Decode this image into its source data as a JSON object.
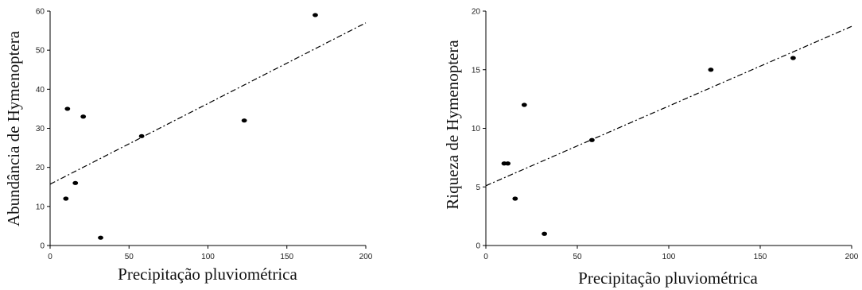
{
  "chart_data": [
    {
      "type": "scatter",
      "xlabel": "Precipitação pluviométrica",
      "ylabel": "Abundância de Hymenoptera",
      "xlim": [
        0,
        200
      ],
      "ylim": [
        0,
        60
      ],
      "xticks": [
        0,
        50,
        100,
        150,
        200
      ],
      "yticks": [
        0,
        10,
        20,
        30,
        40,
        50,
        60
      ],
      "grid": false,
      "points": [
        {
          "x": 10,
          "y": 12
        },
        {
          "x": 11,
          "y": 35
        },
        {
          "x": 16,
          "y": 16
        },
        {
          "x": 21,
          "y": 33
        },
        {
          "x": 32,
          "y": 2
        },
        {
          "x": 58,
          "y": 28
        },
        {
          "x": 123,
          "y": 32
        },
        {
          "x": 168,
          "y": 59
        }
      ],
      "trendline": {
        "style": "dash-dot",
        "x": [
          0,
          200
        ],
        "y": [
          15.7,
          57
        ]
      }
    },
    {
      "type": "scatter",
      "xlabel": "Precipitação pluviométrica",
      "ylabel": "Riqueza de Hymenoptera",
      "xlim": [
        0,
        200
      ],
      "ylim": [
        0,
        20
      ],
      "xticks": [
        0,
        50,
        100,
        150,
        200
      ],
      "yticks": [
        0,
        5,
        10,
        15,
        20
      ],
      "grid": false,
      "points": [
        {
          "x": 10,
          "y": 7
        },
        {
          "x": 12,
          "y": 7
        },
        {
          "x": 16,
          "y": 4
        },
        {
          "x": 21,
          "y": 12
        },
        {
          "x": 32,
          "y": 1
        },
        {
          "x": 58,
          "y": 9
        },
        {
          "x": 123,
          "y": 15
        },
        {
          "x": 168,
          "y": 16
        }
      ],
      "trendline": {
        "style": "dash-dot",
        "x": [
          0,
          200
        ],
        "y": [
          5.1,
          18.7
        ]
      }
    }
  ]
}
